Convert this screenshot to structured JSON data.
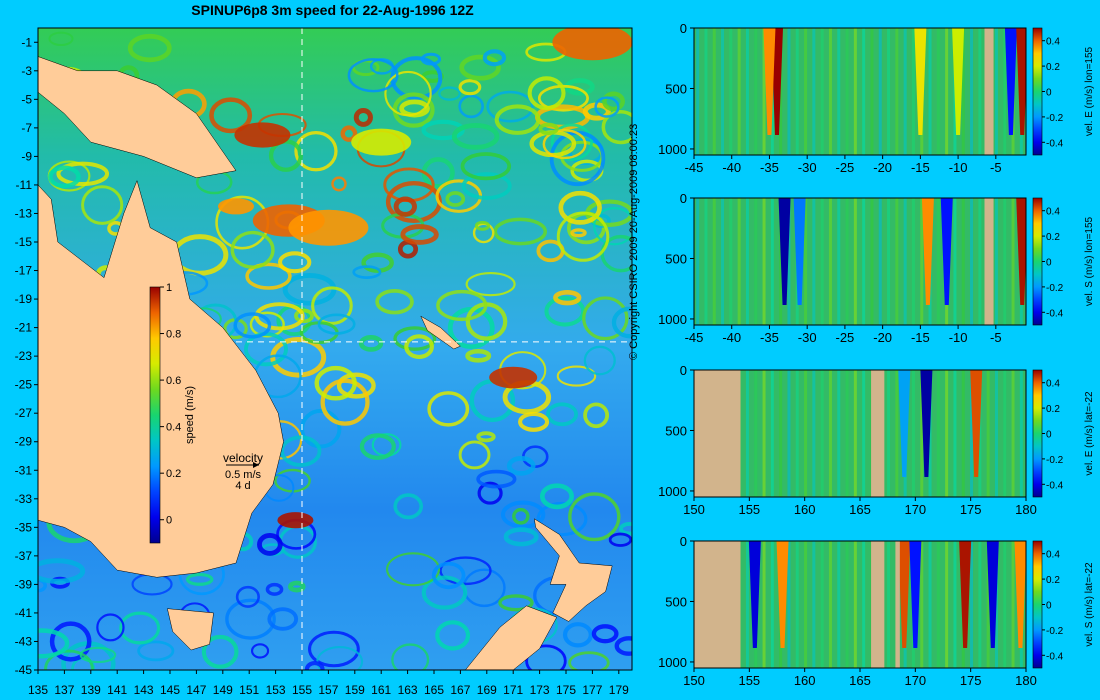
{
  "title": "SPINUP6p8 3m speed for 22-Aug-1996 12Z",
  "copyright": "© Copyright CSIRO 2009  20-Aug-2009 08:00:23",
  "colors": {
    "background": "#00ccff",
    "land": "#ffcc99",
    "land_section": "#d2b48c"
  },
  "chart_data": [
    {
      "type": "heatmap",
      "title": "SPINUP6p8 3m speed for 22-Aug-1996 12Z",
      "x_ticks": [
        "135",
        "137",
        "139",
        "141",
        "143",
        "145",
        "147",
        "149",
        "151",
        "153",
        "155",
        "157",
        "159",
        "161",
        "163",
        "165",
        "167",
        "169",
        "171",
        "173",
        "175",
        "177",
        "179"
      ],
      "y_ticks": [
        "-1",
        "-3",
        "-5",
        "-7",
        "-9",
        "-11",
        "-13",
        "-15",
        "-17",
        "-19",
        "-21",
        "-23",
        "-25",
        "-27",
        "-29",
        "-31",
        "-33",
        "-35",
        "-37",
        "-39",
        "-41",
        "-43",
        "-45"
      ],
      "xlim": [
        135,
        180
      ],
      "ylim": [
        -45,
        0
      ],
      "colorbar": {
        "label": "speed (m/s)",
        "ticks": [
          "1",
          "0.8",
          "0.6",
          "0.4",
          "0.2",
          "0"
        ],
        "range": [
          -0.1,
          1
        ]
      },
      "crosshair": {
        "lon": 155,
        "lat": -22
      },
      "velocity_key": {
        "title": "velocity",
        "speed": "0.5 m/s",
        "duration": "4 d"
      }
    },
    {
      "type": "heatmap",
      "ylabel": "vel. E (m/s) lon=155",
      "x_ticks": [
        "-45",
        "-40",
        "-35",
        "-30",
        "-25",
        "-20",
        "-15",
        "-10",
        "-5"
      ],
      "xlim": [
        -45,
        -1
      ],
      "y_ticks": [
        "0",
        "500",
        "1000"
      ],
      "ylim": [
        1050,
        0
      ],
      "colorbar_ticks": [
        "0.4",
        "0.2",
        "0",
        "-0.2",
        "-0.4"
      ],
      "features": [
        {
          "x": -34,
          "value": 0.45
        },
        {
          "x": -35,
          "value": 0.3
        },
        {
          "x": -15,
          "value": 0.2
        },
        {
          "x": -10,
          "value": 0.15
        },
        {
          "x": -3,
          "value": -0.3
        },
        {
          "x": -1.5,
          "value": 0.4
        }
      ],
      "land": [
        [
          -6.5,
          -5.3
        ]
      ]
    },
    {
      "type": "heatmap",
      "ylabel": "vel. S (m/s) lon=155",
      "x_ticks": [
        "-45",
        "-40",
        "-35",
        "-30",
        "-25",
        "-20",
        "-15",
        "-10",
        "-5"
      ],
      "xlim": [
        -45,
        -1
      ],
      "y_ticks": [
        "0",
        "500",
        "1000"
      ],
      "ylim": [
        1050,
        0
      ],
      "colorbar_ticks": [
        "0.4",
        "0.2",
        "0",
        "-0.2",
        "-0.4"
      ],
      "features": [
        {
          "x": -33,
          "value": -0.4
        },
        {
          "x": -31,
          "value": -0.2
        },
        {
          "x": -14,
          "value": 0.3
        },
        {
          "x": -11.5,
          "value": -0.3
        },
        {
          "x": -1.5,
          "value": 0.4
        }
      ],
      "land": [
        [
          -6.5,
          -5.3
        ]
      ]
    },
    {
      "type": "heatmap",
      "ylabel": "vel. E (m/s) lat=-22",
      "x_ticks": [
        "150",
        "155",
        "160",
        "165",
        "170",
        "175",
        "180"
      ],
      "xlim": [
        150,
        180
      ],
      "y_ticks": [
        "0",
        "500",
        "1000"
      ],
      "ylim": [
        1050,
        0
      ],
      "colorbar_ticks": [
        "0.4",
        "0.2",
        "0",
        "-0.2",
        "-0.4"
      ],
      "features": [
        {
          "x": 171,
          "value": -0.4
        },
        {
          "x": 169,
          "value": -0.15
        },
        {
          "x": 175.5,
          "value": 0.35
        }
      ],
      "land": [
        [
          150,
          154.2
        ],
        [
          166,
          167.2
        ]
      ]
    },
    {
      "type": "heatmap",
      "ylabel": "vel. S (m/s) lat=-22",
      "x_ticks": [
        "150",
        "155",
        "160",
        "165",
        "170",
        "175",
        "180"
      ],
      "xlim": [
        150,
        180
      ],
      "y_ticks": [
        "0",
        "500",
        "1000"
      ],
      "ylim": [
        1050,
        0
      ],
      "colorbar_ticks": [
        "0.4",
        "0.2",
        "0",
        "-0.2",
        "-0.4"
      ],
      "features": [
        {
          "x": 155.5,
          "value": -0.35
        },
        {
          "x": 158,
          "value": 0.3
        },
        {
          "x": 169,
          "value": 0.35
        },
        {
          "x": 170,
          "value": -0.3
        },
        {
          "x": 174.5,
          "value": 0.4
        },
        {
          "x": 177,
          "value": -0.35
        },
        {
          "x": 179.5,
          "value": 0.3
        }
      ],
      "land": [
        [
          150,
          154.2
        ],
        [
          166,
          167.2
        ],
        [
          168.2,
          168.6
        ]
      ]
    }
  ]
}
